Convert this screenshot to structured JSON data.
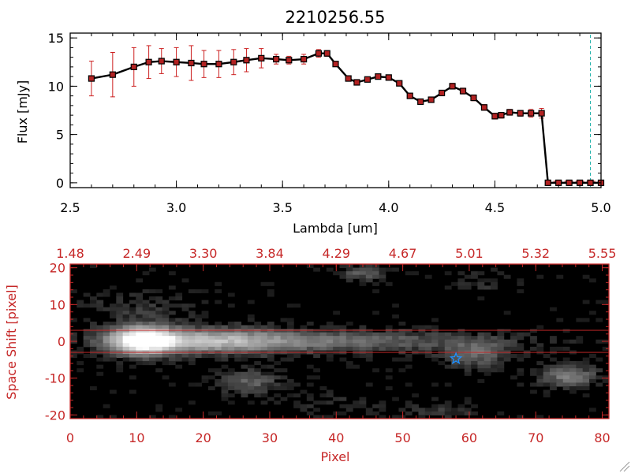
{
  "chart_data": [
    {
      "type": "line",
      "title": "2210256.55",
      "xlabel": "Lambda [um]",
      "ylabel": "Flux [mJy]",
      "xlim": [
        2.5,
        5.0
      ],
      "ylim": [
        -0.5,
        15.5
      ],
      "xticks": [
        2.5,
        3.0,
        3.5,
        4.0,
        4.5,
        5.0
      ],
      "xtick_labels": [
        "2.5",
        "3.0",
        "3.5",
        "4.0",
        "4.5",
        "5.0"
      ],
      "yticks": [
        0,
        5,
        10,
        15
      ],
      "ytick_labels": [
        "0",
        "5",
        "10",
        "15"
      ],
      "series": [
        {
          "name": "flux",
          "color": "#000000",
          "marker_color": "#b22222",
          "errorbar_color": "#cc2020",
          "x": [
            2.6,
            2.7,
            2.8,
            2.87,
            2.93,
            3.0,
            3.07,
            3.13,
            3.2,
            3.27,
            3.33,
            3.4,
            3.47,
            3.53,
            3.6,
            3.67,
            3.71,
            3.75,
            3.81,
            3.85,
            3.9,
            3.95,
            4.0,
            4.05,
            4.1,
            4.15,
            4.2,
            4.25,
            4.3,
            4.35,
            4.4,
            4.45,
            4.5,
            4.53,
            4.57,
            4.62,
            4.67,
            4.72,
            4.75,
            4.8,
            4.85,
            4.9,
            4.95,
            5.0
          ],
          "y": [
            10.8,
            11.2,
            12.0,
            12.5,
            12.6,
            12.5,
            12.4,
            12.3,
            12.3,
            12.5,
            12.7,
            12.9,
            12.8,
            12.7,
            12.8,
            13.4,
            13.4,
            12.3,
            10.8,
            10.4,
            10.7,
            11.0,
            10.9,
            10.3,
            9.0,
            8.4,
            8.6,
            9.3,
            10.0,
            9.5,
            8.8,
            7.8,
            6.9,
            7.0,
            7.3,
            7.2,
            7.2,
            7.2,
            0.0,
            0.0,
            0.0,
            0.0,
            0.0,
            0.0
          ],
          "yerr": [
            1.8,
            2.3,
            2.0,
            1.7,
            1.3,
            1.5,
            1.8,
            1.4,
            1.4,
            1.3,
            1.2,
            1.0,
            0.5,
            0.4,
            0.5,
            0.4,
            0.3,
            0.2,
            0.2,
            0.2,
            0.2,
            0.2,
            0.2,
            0.2,
            0.2,
            0.2,
            0.2,
            0.2,
            0.3,
            0.3,
            0.3,
            0.3,
            0.3,
            0.3,
            0.3,
            0.3,
            0.4,
            0.5,
            0,
            0,
            0,
            0,
            0,
            0
          ]
        }
      ],
      "annotations": [
        {
          "type": "vline",
          "x": 4.95,
          "style": "dashed",
          "color": "#20b2aa"
        },
        {
          "type": "hline",
          "y": 0.0,
          "x_from": 4.75,
          "x_to": 5.0,
          "style": "dashed",
          "color": "#cc2020"
        }
      ]
    },
    {
      "type": "heatmap",
      "xlabel": "Pixel",
      "ylabel": "Space Shift [pixel]",
      "axis_color": "#c62828",
      "xlim": [
        0,
        81
      ],
      "ylim": [
        -21,
        21
      ],
      "xticks": [
        0,
        10,
        20,
        30,
        40,
        50,
        60,
        70,
        80
      ],
      "xtick_labels": [
        "0",
        "10",
        "20",
        "30",
        "40",
        "50",
        "60",
        "70",
        "80"
      ],
      "yticks": [
        -20,
        -10,
        0,
        10,
        20
      ],
      "ytick_labels": [
        "-20",
        "-10",
        "0",
        "10",
        "20"
      ],
      "top_axis_labels": [
        "1.48",
        "2.49",
        "3.30",
        "3.84",
        "4.29",
        "4.67",
        "5.01",
        "5.32",
        "5.55"
      ],
      "top_axis_positions": [
        0,
        10,
        20,
        30,
        40,
        50,
        60,
        70,
        80
      ],
      "trace_lines_y": [
        3,
        -3
      ],
      "trace_line_color": "#c62828",
      "marker": {
        "type": "star",
        "x": 58,
        "y": -4.7,
        "color": "#1e90ff"
      },
      "blobs": [
        {
          "x": 11,
          "y": 0.3,
          "sx": 3.2,
          "sy": 2.6,
          "amp": 1.0
        },
        {
          "x": 20,
          "y": 0.2,
          "sx": 9,
          "sy": 2.4,
          "amp": 0.5
        },
        {
          "x": 38,
          "y": 0.0,
          "sx": 18,
          "sy": 2.0,
          "amp": 0.32
        },
        {
          "x": 61,
          "y": -3.5,
          "sx": 3.2,
          "sy": 2.5,
          "amp": 0.3
        },
        {
          "x": 75,
          "y": -9.5,
          "sx": 3.0,
          "sy": 2.0,
          "amp": 0.38
        },
        {
          "x": 27,
          "y": -11,
          "sx": 3.0,
          "sy": 2.2,
          "amp": 0.28
        },
        {
          "x": 44,
          "y": 18.5,
          "sx": 2.4,
          "sy": 1.4,
          "amp": 0.25
        },
        {
          "x": 10,
          "y": 9,
          "sx": 6,
          "sy": 3,
          "amp": 0.12
        },
        {
          "x": 62,
          "y": 16,
          "sx": 3,
          "sy": 2,
          "amp": 0.1
        },
        {
          "x": 56,
          "y": -19,
          "sx": 3,
          "sy": 1.5,
          "amp": 0.15
        },
        {
          "x": 40,
          "y": -17,
          "sx": 6,
          "sy": 2,
          "amp": 0.08
        }
      ]
    }
  ]
}
